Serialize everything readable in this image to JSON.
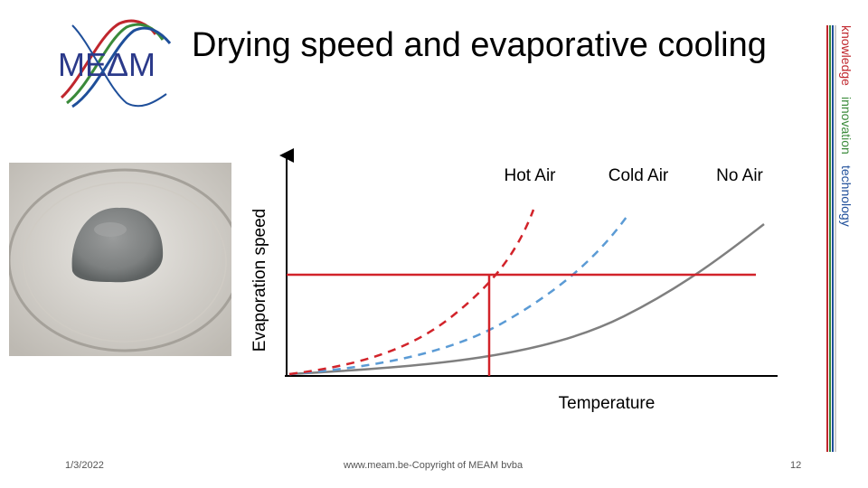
{
  "slide": {
    "title": "Drying speed and evaporative cooling",
    "logo_text": "MEΔM",
    "footer": {
      "date": "1/3/2022",
      "copyright": "www.meam.be-Copyright of MEAM bvba",
      "page_number": "12"
    },
    "sidebar": {
      "words": [
        "knowledge",
        "innovation",
        "technology"
      ],
      "colors": [
        "#c0262d",
        "#3a8a3a",
        "#1f4f9a"
      ]
    }
  },
  "diagram": {
    "xlabel": "Temperature",
    "ylabel": "Evaporation speed",
    "legend": [
      {
        "label": "Hot Air",
        "color": "#d2232a",
        "style": "dashed"
      },
      {
        "label": "Cold Air",
        "color": "#5b9bd5",
        "style": "dashed"
      },
      {
        "label": "No Air",
        "color": "#7f7f7f",
        "style": "solid"
      }
    ],
    "reference_line_color": "#d2232a"
  }
}
